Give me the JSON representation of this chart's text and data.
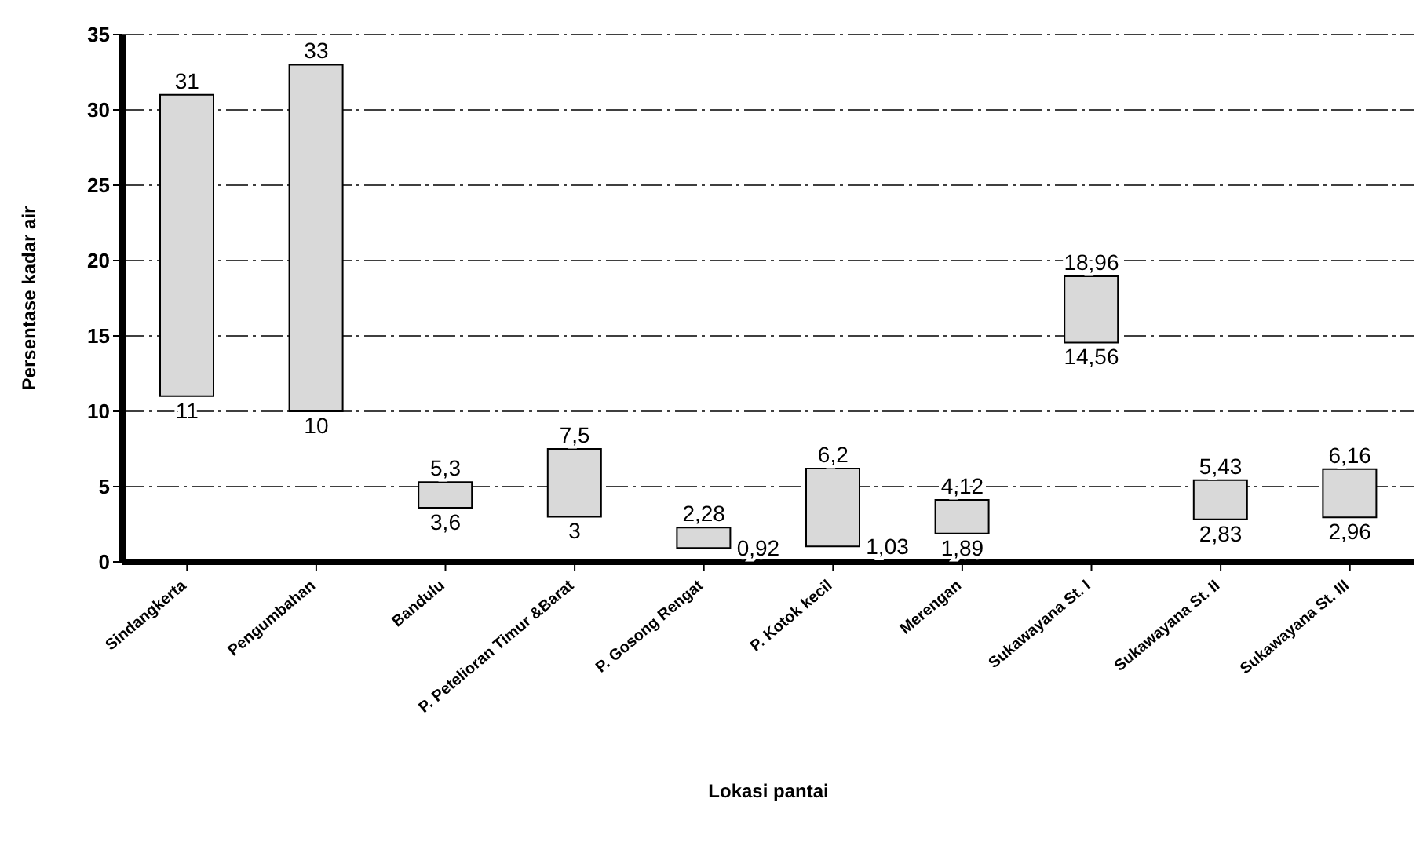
{
  "chart_data": {
    "type": "bar",
    "xlabel": "Lokasi pantai",
    "ylabel": "Persentase kadar air",
    "categories": [
      "Sindangkerta",
      "Pengumbahan",
      "Bandulu",
      "P. Petelioran Timur &Barat",
      "P. Gosong Rengat",
      "P. Kotok kecil",
      "Merengan",
      "Sukawayana St. I",
      "Sukawayana St. II",
      "Sukawayana St. III"
    ],
    "base": [
      11,
      10,
      3.6,
      3,
      0.92,
      1.03,
      1.89,
      14.56,
      2.83,
      2.96
    ],
    "values": [
      20,
      23,
      1.7,
      4.5,
      1.36,
      5.17,
      2.23,
      4.4,
      2.6,
      3.2
    ],
    "color": "#d9d9d9",
    "ylim": [
      0,
      35
    ],
    "yticks": [
      0,
      5,
      10,
      15,
      20,
      25,
      30,
      35
    ],
    "grid": "y",
    "annotations": [
      {
        "text": "31",
        "x": "Sindangkerta",
        "y": 31
      },
      {
        "text": "11",
        "x": "Sindangkerta",
        "y": 11
      },
      {
        "text": "33",
        "x": "Pengumbahan",
        "y": 33
      },
      {
        "text": "10",
        "x": "Pengumbahan",
        "y": 10
      },
      {
        "text": "5,3",
        "x": "Bandulu",
        "y": 5.3
      },
      {
        "text": "3,6",
        "x": "Bandulu",
        "y": 3.6
      },
      {
        "text": "7,5",
        "x": "P. Petelioran Timur &Barat",
        "y": 7.5
      },
      {
        "text": "3",
        "x": "P. Petelioran Timur &Barat",
        "y": 3
      },
      {
        "text": "2,28",
        "x": "P. Gosong Rengat",
        "y": 2.28
      },
      {
        "text": "0,92",
        "x": "P. Gosong Rengat",
        "y": 0.92
      },
      {
        "text": "6,2",
        "x": "P. Kotok kecil",
        "y": 6.2
      },
      {
        "text": "1,03",
        "x": "P. Kotok kecil",
        "y": 1.03
      },
      {
        "text": "4,12",
        "x": "Merengan",
        "y": 4.12
      },
      {
        "text": "1,89",
        "x": "Merengan",
        "y": 1.89
      },
      {
        "text": "18,96",
        "x": "Sukawayana St. I",
        "y": 18.96
      },
      {
        "text": "14,56",
        "x": "Sukawayana St. I",
        "y": 14.56
      },
      {
        "text": "5,43",
        "x": "Sukawayana St. II",
        "y": 5.43
      },
      {
        "text": "2,83",
        "x": "Sukawayana St. II",
        "y": 2.83
      },
      {
        "text": "6,16",
        "x": "Sukawayana St. III",
        "y": 6.16
      },
      {
        "text": "2,96",
        "x": "Sukawayana St. III",
        "y": 2.96
      }
    ]
  }
}
